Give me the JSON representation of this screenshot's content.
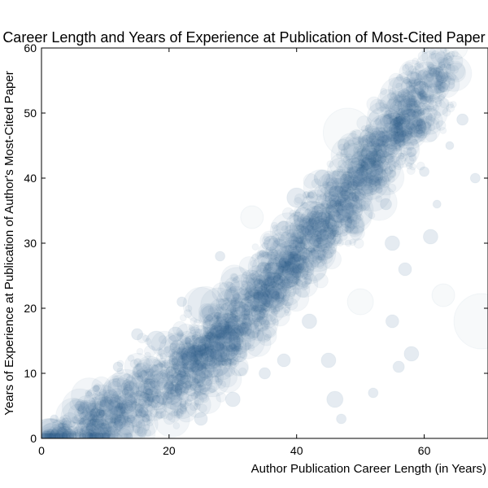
{
  "chart_data": {
    "type": "scatter",
    "title": "Career Length and Years of Experience at Publication of Most-Cited Paper",
    "xlabel": "Author Publication Career Length (in Years)",
    "ylabel": "Years of Experience at Publication of Author's Most-Cited Paper",
    "xlim": [
      0,
      70
    ],
    "ylim": [
      0,
      60
    ],
    "xticks": [
      0,
      20,
      40,
      60
    ],
    "yticks": [
      0,
      10,
      20,
      30,
      40,
      50,
      60
    ],
    "grid": false,
    "legend": "none",
    "marker_color": "#2a5a8c",
    "marker_opacity": 0.06,
    "density_trend": [
      {
        "x": 5,
        "y": 2
      },
      {
        "x": 12,
        "y": 4
      },
      {
        "x": 20,
        "y": 9
      },
      {
        "x": 25,
        "y": 12
      },
      {
        "x": 30,
        "y": 17
      },
      {
        "x": 35,
        "y": 23
      },
      {
        "x": 40,
        "y": 28
      },
      {
        "x": 45,
        "y": 34
      },
      {
        "x": 50,
        "y": 40
      },
      {
        "x": 55,
        "y": 47
      },
      {
        "x": 60,
        "y": 52
      }
    ],
    "points": [
      {
        "x": 12,
        "y": 2,
        "s": 6
      },
      {
        "x": 14,
        "y": 3,
        "s": 5
      },
      {
        "x": 16,
        "y": 4,
        "s": 6
      },
      {
        "x": 18,
        "y": 6,
        "s": 5
      },
      {
        "x": 20,
        "y": 8,
        "s": 6
      },
      {
        "x": 22,
        "y": 10,
        "s": 5
      },
      {
        "x": 24,
        "y": 11,
        "s": 6
      },
      {
        "x": 26,
        "y": 13,
        "s": 5
      },
      {
        "x": 28,
        "y": 15,
        "s": 6
      },
      {
        "x": 30,
        "y": 18,
        "s": 6
      },
      {
        "x": 32,
        "y": 20,
        "s": 5
      },
      {
        "x": 34,
        "y": 22,
        "s": 6
      },
      {
        "x": 36,
        "y": 25,
        "s": 5
      },
      {
        "x": 38,
        "y": 27,
        "s": 6
      },
      {
        "x": 40,
        "y": 29,
        "s": 5
      },
      {
        "x": 42,
        "y": 32,
        "s": 6
      },
      {
        "x": 44,
        "y": 34,
        "s": 6
      },
      {
        "x": 46,
        "y": 37,
        "s": 5
      },
      {
        "x": 48,
        "y": 39,
        "s": 5
      },
      {
        "x": 50,
        "y": 41,
        "s": 5
      },
      {
        "x": 52,
        "y": 44,
        "s": 5
      },
      {
        "x": 54,
        "y": 46,
        "s": 5
      },
      {
        "x": 56,
        "y": 48,
        "s": 5
      },
      {
        "x": 58,
        "y": 50,
        "s": 5
      },
      {
        "x": 60,
        "y": 52,
        "s": 5
      },
      {
        "x": 48,
        "y": 47,
        "s": 30
      },
      {
        "x": 51,
        "y": 43,
        "s": 18
      },
      {
        "x": 47,
        "y": 42,
        "s": 14
      },
      {
        "x": 40,
        "y": 37,
        "s": 12
      },
      {
        "x": 44,
        "y": 40,
        "s": 10
      },
      {
        "x": 69,
        "y": 18,
        "s": 34
      },
      {
        "x": 63,
        "y": 22,
        "s": 14
      },
      {
        "x": 61,
        "y": 31,
        "s": 9
      },
      {
        "x": 58,
        "y": 13,
        "s": 9
      },
      {
        "x": 55,
        "y": 18,
        "s": 8
      },
      {
        "x": 50,
        "y": 21,
        "s": 16
      },
      {
        "x": 46,
        "y": 6,
        "s": 10
      },
      {
        "x": 47,
        "y": 3,
        "s": 6
      },
      {
        "x": 45,
        "y": 12,
        "s": 9
      },
      {
        "x": 56,
        "y": 11,
        "s": 7
      },
      {
        "x": 60,
        "y": 41,
        "s": 6
      },
      {
        "x": 64,
        "y": 45,
        "s": 5
      },
      {
        "x": 63,
        "y": 54,
        "s": 6
      },
      {
        "x": 65,
        "y": 60,
        "s": 14
      },
      {
        "x": 62,
        "y": 36,
        "s": 5
      },
      {
        "x": 66,
        "y": 49,
        "s": 7
      },
      {
        "x": 68,
        "y": 40,
        "s": 6
      },
      {
        "x": 57,
        "y": 26,
        "s": 8
      },
      {
        "x": 33,
        "y": 34,
        "s": 14
      },
      {
        "x": 36,
        "y": 30,
        "s": 9
      },
      {
        "x": 15,
        "y": 16,
        "s": 7
      },
      {
        "x": 18,
        "y": 15,
        "s": 12
      },
      {
        "x": 22,
        "y": 21,
        "s": 6
      },
      {
        "x": 21,
        "y": 16,
        "s": 9
      },
      {
        "x": 12,
        "y": 11,
        "s": 6
      },
      {
        "x": 4,
        "y": 2,
        "s": 6
      },
      {
        "x": 6,
        "y": 5,
        "s": 6
      },
      {
        "x": 3,
        "y": 0.5,
        "s": 5
      },
      {
        "x": 2,
        "y": 3,
        "s": 5
      },
      {
        "x": 8,
        "y": 1,
        "s": 5
      },
      {
        "x": 10,
        "y": 0.5,
        "s": 6
      },
      {
        "x": 25,
        "y": 3,
        "s": 8
      },
      {
        "x": 30,
        "y": 6,
        "s": 9
      },
      {
        "x": 35,
        "y": 10,
        "s": 7
      },
      {
        "x": 38,
        "y": 12,
        "s": 8
      },
      {
        "x": 42,
        "y": 18,
        "s": 9
      },
      {
        "x": 52,
        "y": 7,
        "s": 6
      },
      {
        "x": 54,
        "y": 36,
        "s": 7
      },
      {
        "x": 58,
        "y": 44,
        "s": 6
      },
      {
        "x": 55,
        "y": 30,
        "s": 9
      },
      {
        "x": 28,
        "y": 28,
        "s": 6
      },
      {
        "x": 31,
        "y": 13,
        "s": 10
      }
    ]
  }
}
